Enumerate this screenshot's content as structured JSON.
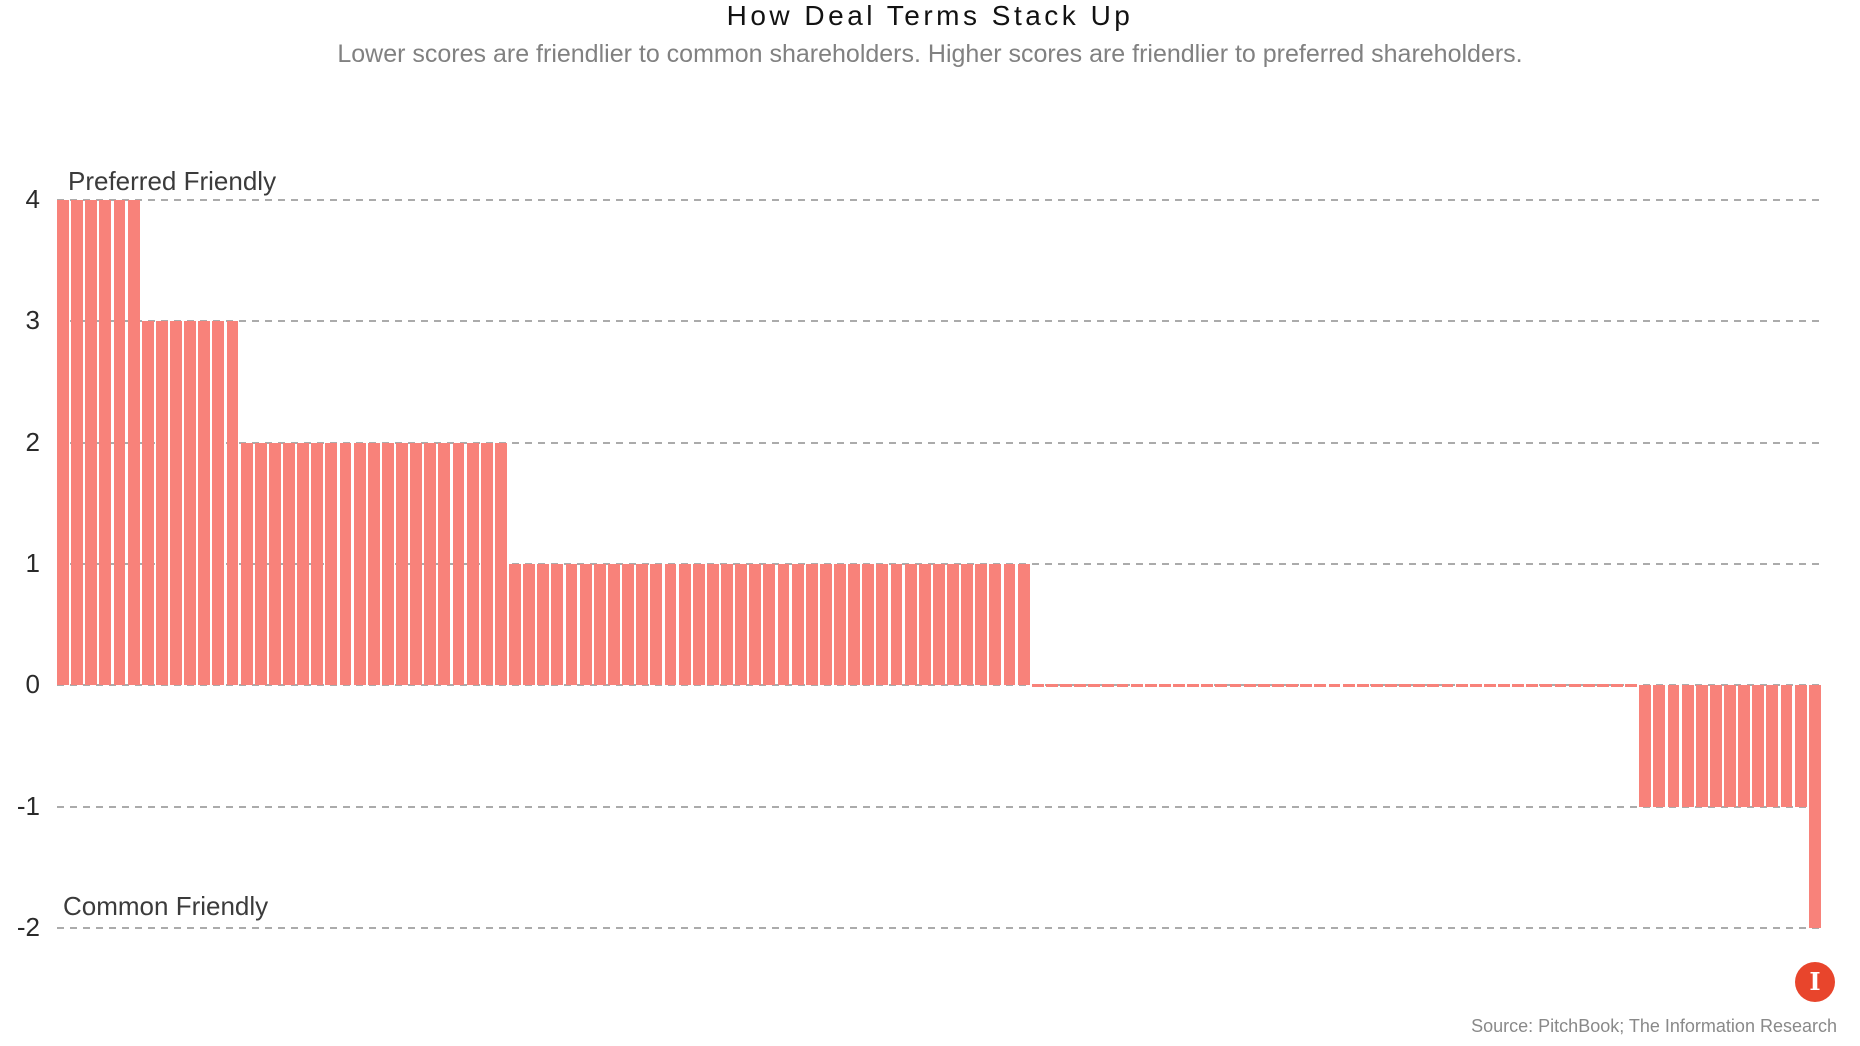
{
  "page": {
    "title": "How Deal Terms Stack Up",
    "subtitle": "Lower scores are friendlier to common shareholders. Higher scores are friendlier to preferred shareholders.",
    "source": "Source: PitchBook; The Information Research",
    "logo_letter": "I"
  },
  "chart_data": {
    "type": "bar",
    "title": "How Deal Terms Stack Up",
    "subtitle": "Lower scores are friendlier to common shareholders. Higher scores are friendlier to preferred shareholders.",
    "xlabel": "",
    "ylabel": "",
    "ylim": [
      -2,
      4
    ],
    "yticks": [
      4,
      3,
      2,
      1,
      0,
      -1,
      -2
    ],
    "grid": "horizontal-dashed",
    "legend": "none",
    "annotations": {
      "top": "Preferred Friendly",
      "bottom": "Common Friendly"
    },
    "bar_color": "#F8827A",
    "gridline_color": "#ABABAB",
    "groups": [
      {
        "score": 4,
        "bar_count": 6
      },
      {
        "score": 3,
        "bar_count": 7
      },
      {
        "score": 2,
        "bar_count": 19
      },
      {
        "score": 1,
        "bar_count": 37
      },
      {
        "score": 0,
        "bar_count": 43
      },
      {
        "score": -1,
        "bar_count": 12
      },
      {
        "score": -2,
        "bar_count": 1
      }
    ]
  }
}
